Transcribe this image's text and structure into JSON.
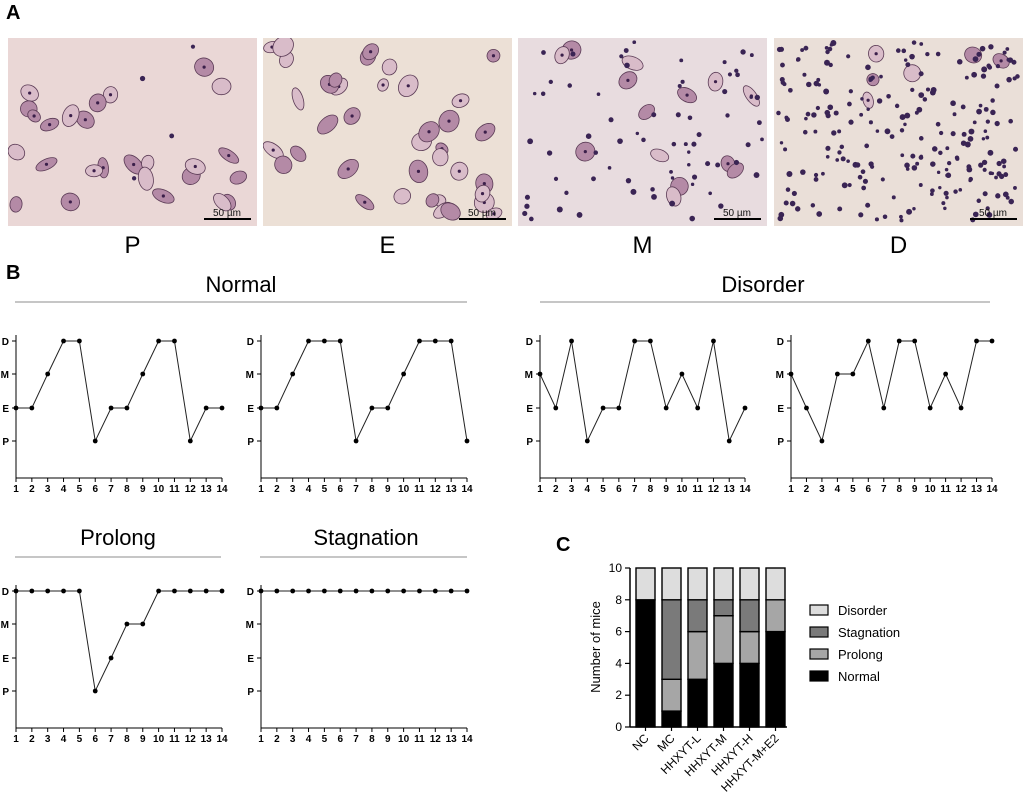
{
  "panels": {
    "a": "A",
    "b": "B",
    "c": "C"
  },
  "micrographs": [
    {
      "stage": "P",
      "scale": "50 µm",
      "bg": "#ead7d6"
    },
    {
      "stage": "E",
      "scale": "50 µm",
      "bg": "#ece0d6"
    },
    {
      "stage": "M",
      "scale": "50 µm",
      "bg": "#e8dcdf"
    },
    {
      "stage": "D",
      "scale": "50 µm",
      "bg": "#eadfd8"
    }
  ],
  "group_titles": {
    "normal": "Normal",
    "disorder": "Disorder",
    "prolong": "Prolong",
    "stagnation": "Stagnation"
  },
  "chart_data": [
    {
      "type": "line",
      "group": "Normal",
      "y_categories": [
        "P",
        "E",
        "M",
        "D"
      ],
      "x": [
        1,
        2,
        3,
        4,
        5,
        6,
        7,
        8,
        9,
        10,
        11,
        12,
        13,
        14
      ],
      "values": [
        "E",
        "E",
        "M",
        "D",
        "D",
        "P",
        "E",
        "E",
        "M",
        "D",
        "D",
        "P",
        "E",
        "E"
      ]
    },
    {
      "type": "line",
      "group": "Normal",
      "y_categories": [
        "P",
        "E",
        "M",
        "D"
      ],
      "x": [
        1,
        2,
        3,
        4,
        5,
        6,
        7,
        8,
        9,
        10,
        11,
        12,
        13,
        14
      ],
      "values": [
        "E",
        "E",
        "M",
        "D",
        "D",
        "D",
        "P",
        "E",
        "E",
        "M",
        "D",
        "D",
        "D",
        "P"
      ]
    },
    {
      "type": "line",
      "group": "Disorder",
      "y_categories": [
        "P",
        "E",
        "M",
        "D"
      ],
      "x": [
        1,
        2,
        3,
        4,
        5,
        6,
        7,
        8,
        9,
        10,
        11,
        12,
        13,
        14
      ],
      "values": [
        "M",
        "E",
        "D",
        "P",
        "E",
        "E",
        "D",
        "D",
        "E",
        "M",
        "E",
        "D",
        "P",
        "E"
      ]
    },
    {
      "type": "line",
      "group": "Disorder",
      "y_categories": [
        "P",
        "E",
        "M",
        "D"
      ],
      "x": [
        1,
        2,
        3,
        4,
        5,
        6,
        7,
        8,
        9,
        10,
        11,
        12,
        13,
        14
      ],
      "values": [
        "M",
        "E",
        "P",
        "M",
        "M",
        "D",
        "E",
        "D",
        "D",
        "E",
        "M",
        "E",
        "D",
        "D"
      ]
    },
    {
      "type": "line",
      "group": "Prolong",
      "y_categories": [
        "P",
        "E",
        "M",
        "D"
      ],
      "x": [
        1,
        2,
        3,
        4,
        5,
        6,
        7,
        8,
        9,
        10,
        11,
        12,
        13,
        14
      ],
      "values": [
        "D",
        "D",
        "D",
        "D",
        "D",
        "P",
        "E",
        "M",
        "M",
        "D",
        "D",
        "D",
        "D",
        "D"
      ]
    },
    {
      "type": "line",
      "group": "Stagnation",
      "y_categories": [
        "P",
        "E",
        "M",
        "D"
      ],
      "x": [
        1,
        2,
        3,
        4,
        5,
        6,
        7,
        8,
        9,
        10,
        11,
        12,
        13,
        14
      ],
      "values": [
        "D",
        "D",
        "D",
        "D",
        "D",
        "D",
        "D",
        "D",
        "D",
        "D",
        "D",
        "D",
        "D",
        "D"
      ]
    },
    {
      "type": "bar",
      "stacked": true,
      "categories": [
        "NC",
        "MC",
        "HHXYT-L",
        "HHXYT-M",
        "HHXYT-H",
        "HHXYT-M+E2"
      ],
      "series": [
        {
          "name": "Normal",
          "values": [
            8,
            1,
            3,
            4,
            4,
            6
          ],
          "color": "#000000"
        },
        {
          "name": "Prolong",
          "values": [
            0,
            2,
            3,
            3,
            2,
            2
          ],
          "color": "#a6a6a6"
        },
        {
          "name": "Stagnation",
          "values": [
            0,
            5,
            2,
            1,
            2,
            0
          ],
          "color": "#7a7a7a"
        },
        {
          "name": "Disorder",
          "values": [
            2,
            2,
            2,
            2,
            2,
            2
          ],
          "color": "#dddddd"
        }
      ],
      "ylabel": "Number of mice",
      "ylim": [
        0,
        10
      ],
      "yticks": [
        0,
        2,
        4,
        6,
        8,
        10
      ],
      "legend_order": [
        "Disorder",
        "Stagnation",
        "Prolong",
        "Normal"
      ],
      "legend": "right"
    }
  ]
}
